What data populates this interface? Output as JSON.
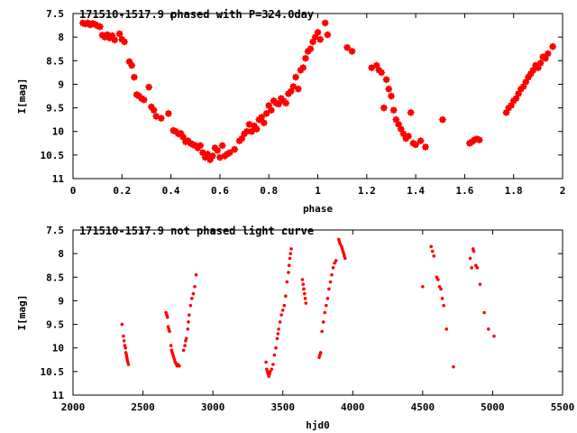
{
  "chart_data": [
    {
      "type": "scatter",
      "title": "171510-1517.9 phased with P=324.0day",
      "xlabel": "phase",
      "ylabel": "I[mag]",
      "xlim": [
        0,
        2
      ],
      "ylim": [
        7.5,
        11
      ],
      "y_inverted": true,
      "grid": false,
      "marker": "star",
      "color": "#ff0000",
      "x_ticks": [
        0,
        0.2,
        0.4,
        0.6,
        0.8,
        1,
        1.2,
        1.4,
        1.6,
        1.8,
        2
      ],
      "x_tick_labels": [
        "0",
        "0.2",
        "0.4",
        "0.6",
        "0.8",
        "1",
        "1.2",
        "1.4",
        "1.6",
        "1.8",
        "2"
      ],
      "y_ticks": [
        7.5,
        8,
        8.5,
        9,
        9.5,
        10,
        10.5,
        11
      ],
      "y_tick_labels": [
        "7.5",
        "8",
        "8.5",
        "9",
        "9.5",
        "10",
        "10.5",
        "11"
      ],
      "series": [
        {
          "points": [
            [
              0.04,
              7.7
            ],
            [
              0.05,
              7.72
            ],
            [
              0.06,
              7.7
            ],
            [
              0.07,
              7.74
            ],
            [
              0.08,
              7.71
            ],
            [
              0.09,
              7.73
            ],
            [
              0.1,
              7.76
            ],
            [
              0.11,
              7.78
            ],
            [
              0.12,
              7.96
            ],
            [
              0.13,
              8.0
            ],
            [
              0.14,
              7.95
            ],
            [
              0.15,
              8.02
            ],
            [
              0.16,
              7.97
            ],
            [
              0.17,
              8.06
            ],
            [
              0.19,
              7.93
            ],
            [
              0.2,
              8.05
            ],
            [
              0.21,
              8.1
            ],
            [
              0.23,
              8.52
            ],
            [
              0.24,
              8.6
            ],
            [
              0.25,
              8.85
            ],
            [
              0.26,
              9.22
            ],
            [
              0.27,
              9.25
            ],
            [
              0.28,
              9.3
            ],
            [
              0.29,
              9.33
            ],
            [
              0.31,
              9.06
            ],
            [
              0.32,
              9.48
            ],
            [
              0.33,
              9.55
            ],
            [
              0.34,
              9.68
            ],
            [
              0.36,
              9.72
            ],
            [
              0.39,
              9.62
            ],
            [
              0.41,
              9.98
            ],
            [
              0.42,
              10.0
            ],
            [
              0.43,
              10.05
            ],
            [
              0.44,
              10.04
            ],
            [
              0.45,
              10.12
            ],
            [
              0.46,
              10.22
            ],
            [
              0.47,
              10.2
            ],
            [
              0.48,
              10.25
            ],
            [
              0.49,
              10.28
            ],
            [
              0.5,
              10.3
            ],
            [
              0.51,
              10.35
            ],
            [
              0.52,
              10.3
            ],
            [
              0.53,
              10.45
            ],
            [
              0.54,
              10.55
            ],
            [
              0.55,
              10.48
            ],
            [
              0.56,
              10.6
            ],
            [
              0.57,
              10.52
            ],
            [
              0.58,
              10.35
            ],
            [
              0.59,
              10.4
            ],
            [
              0.6,
              10.55
            ],
            [
              0.61,
              10.3
            ],
            [
              0.62,
              10.52
            ],
            [
              0.63,
              10.48
            ],
            [
              0.64,
              10.45
            ],
            [
              0.66,
              10.38
            ],
            [
              0.68,
              10.2
            ],
            [
              0.69,
              10.15
            ],
            [
              0.7,
              10.05
            ],
            [
              0.71,
              10.0
            ],
            [
              0.72,
              9.85
            ],
            [
              0.73,
              10.0
            ],
            [
              0.74,
              9.88
            ],
            [
              0.75,
              9.95
            ],
            [
              0.76,
              9.75
            ],
            [
              0.77,
              9.7
            ],
            [
              0.78,
              9.82
            ],
            [
              0.79,
              9.62
            ],
            [
              0.8,
              9.45
            ],
            [
              0.81,
              9.55
            ],
            [
              0.82,
              9.35
            ],
            [
              0.83,
              9.4
            ],
            [
              0.84,
              9.42
            ],
            [
              0.85,
              9.3
            ],
            [
              0.86,
              9.35
            ],
            [
              0.87,
              9.4
            ],
            [
              0.88,
              9.2
            ],
            [
              0.89,
              9.15
            ],
            [
              0.9,
              9.05
            ],
            [
              0.91,
              8.85
            ],
            [
              0.92,
              9.1
            ],
            [
              0.93,
              8.7
            ],
            [
              0.94,
              8.65
            ],
            [
              0.95,
              8.45
            ],
            [
              0.96,
              8.3
            ],
            [
              0.97,
              8.25
            ],
            [
              0.98,
              8.1
            ],
            [
              0.99,
              8.0
            ],
            [
              1.0,
              7.9
            ],
            [
              1.01,
              8.05
            ],
            [
              1.03,
              7.7
            ],
            [
              1.04,
              7.95
            ],
            [
              1.12,
              8.22
            ],
            [
              1.14,
              8.3
            ],
            [
              1.22,
              8.65
            ],
            [
              1.24,
              8.6
            ],
            [
              1.25,
              8.7
            ],
            [
              1.26,
              8.75
            ],
            [
              1.27,
              9.5
            ],
            [
              1.28,
              8.9
            ],
            [
              1.29,
              9.1
            ],
            [
              1.3,
              9.25
            ],
            [
              1.31,
              9.55
            ],
            [
              1.32,
              9.75
            ],
            [
              1.33,
              9.85
            ],
            [
              1.34,
              9.95
            ],
            [
              1.35,
              10.05
            ],
            [
              1.36,
              10.15
            ],
            [
              1.37,
              10.1
            ],
            [
              1.38,
              9.6
            ],
            [
              1.39,
              10.25
            ],
            [
              1.4,
              10.28
            ],
            [
              1.42,
              10.2
            ],
            [
              1.44,
              10.33
            ],
            [
              1.51,
              9.75
            ],
            [
              1.62,
              10.25
            ],
            [
              1.63,
              10.22
            ],
            [
              1.64,
              10.18
            ],
            [
              1.65,
              10.16
            ],
            [
              1.66,
              10.18
            ],
            [
              1.77,
              9.6
            ],
            [
              1.78,
              9.5
            ],
            [
              1.79,
              9.45
            ],
            [
              1.8,
              9.35
            ],
            [
              1.81,
              9.3
            ],
            [
              1.82,
              9.2
            ],
            [
              1.83,
              9.1
            ],
            [
              1.84,
              9.05
            ],
            [
              1.85,
              8.95
            ],
            [
              1.86,
              8.85
            ],
            [
              1.87,
              8.78
            ],
            [
              1.88,
              8.7
            ],
            [
              1.89,
              8.6
            ],
            [
              1.9,
              8.65
            ],
            [
              1.91,
              8.55
            ],
            [
              1.92,
              8.42
            ],
            [
              1.93,
              8.45
            ],
            [
              1.94,
              8.35
            ],
            [
              1.96,
              8.2
            ]
          ]
        }
      ]
    },
    {
      "type": "scatter",
      "title": "171510-1517.9 not phased light curve",
      "xlabel": "hjd0",
      "ylabel": "I[mag]",
      "xlim": [
        2000,
        5500
      ],
      "ylim": [
        7.5,
        11
      ],
      "y_inverted": true,
      "grid": false,
      "marker": "dot",
      "color": "#ff0000",
      "x_ticks": [
        2000,
        2500,
        3000,
        3500,
        4000,
        4500,
        5000,
        5500
      ],
      "x_tick_labels": [
        "2000",
        "2500",
        "3000",
        "3500",
        "4000",
        "4500",
        "5000",
        "5500"
      ],
      "y_ticks": [
        7.5,
        8,
        8.5,
        9,
        9.5,
        10,
        10.5,
        11
      ],
      "y_tick_labels": [
        "7.5",
        "8",
        "8.5",
        "9",
        "9.5",
        "10",
        "10.5",
        "11"
      ],
      "series": [
        {
          "points": [
            [
              2350,
              9.5
            ],
            [
              2360,
              9.75
            ],
            [
              2365,
              9.85
            ],
            [
              2370,
              9.95
            ],
            [
              2375,
              10.0
            ],
            [
              2378,
              10.1
            ],
            [
              2382,
              10.15
            ],
            [
              2385,
              10.2
            ],
            [
              2388,
              10.25
            ],
            [
              2392,
              10.3
            ],
            [
              2396,
              10.35
            ],
            [
              2665,
              9.25
            ],
            [
              2670,
              9.3
            ],
            [
              2675,
              9.35
            ],
            [
              2680,
              9.55
            ],
            [
              2685,
              9.6
            ],
            [
              2690,
              9.65
            ],
            [
              2700,
              9.95
            ],
            [
              2705,
              10.05
            ],
            [
              2710,
              10.1
            ],
            [
              2715,
              10.15
            ],
            [
              2720,
              10.2
            ],
            [
              2725,
              10.25
            ],
            [
              2730,
              10.3
            ],
            [
              2735,
              10.32
            ],
            [
              2740,
              10.35
            ],
            [
              2745,
              10.38
            ],
            [
              2750,
              10.35
            ],
            [
              2760,
              10.38
            ],
            [
              2790,
              10.05
            ],
            [
              2800,
              9.95
            ],
            [
              2805,
              9.85
            ],
            [
              2810,
              9.8
            ],
            [
              2820,
              9.6
            ],
            [
              2825,
              9.45
            ],
            [
              2830,
              9.3
            ],
            [
              2840,
              9.1
            ],
            [
              2850,
              8.95
            ],
            [
              2860,
              8.85
            ],
            [
              2870,
              8.7
            ],
            [
              2880,
              8.45
            ],
            [
              3380,
              10.3
            ],
            [
              3385,
              10.45
            ],
            [
              3390,
              10.5
            ],
            [
              3395,
              10.55
            ],
            [
              3400,
              10.6
            ],
            [
              3405,
              10.55
            ],
            [
              3410,
              10.5
            ],
            [
              3420,
              10.45
            ],
            [
              3430,
              10.35
            ],
            [
              3440,
              10.15
            ],
            [
              3450,
              10.0
            ],
            [
              3460,
              9.8
            ],
            [
              3465,
              9.7
            ],
            [
              3470,
              9.6
            ],
            [
              3480,
              9.45
            ],
            [
              3490,
              9.3
            ],
            [
              3500,
              9.2
            ],
            [
              3510,
              9.1
            ],
            [
              3520,
              8.9
            ],
            [
              3530,
              8.6
            ],
            [
              3540,
              8.4
            ],
            [
              3545,
              8.25
            ],
            [
              3550,
              8.1
            ],
            [
              3555,
              8.0
            ],
            [
              3560,
              7.9
            ],
            [
              3640,
              8.55
            ],
            [
              3645,
              8.65
            ],
            [
              3650,
              8.75
            ],
            [
              3655,
              8.85
            ],
            [
              3660,
              8.95
            ],
            [
              3665,
              9.05
            ],
            [
              3760,
              10.2
            ],
            [
              3765,
              10.15
            ],
            [
              3770,
              10.1
            ],
            [
              3780,
              9.65
            ],
            [
              3790,
              9.45
            ],
            [
              3800,
              9.25
            ],
            [
              3810,
              9.1
            ],
            [
              3820,
              8.95
            ],
            [
              3830,
              8.75
            ],
            [
              3840,
              8.6
            ],
            [
              3850,
              8.45
            ],
            [
              3860,
              8.3
            ],
            [
              3870,
              8.2
            ],
            [
              3880,
              8.15
            ],
            [
              3900,
              7.7
            ],
            [
              3905,
              7.75
            ],
            [
              3910,
              7.8
            ],
            [
              3920,
              7.85
            ],
            [
              3925,
              7.9
            ],
            [
              3930,
              7.95
            ],
            [
              3935,
              8.0
            ],
            [
              3940,
              8.05
            ],
            [
              3945,
              8.1
            ],
            [
              4500,
              8.7
            ],
            [
              4560,
              7.85
            ],
            [
              4570,
              7.95
            ],
            [
              4580,
              8.05
            ],
            [
              4600,
              8.5
            ],
            [
              4610,
              8.55
            ],
            [
              4620,
              8.7
            ],
            [
              4630,
              8.75
            ],
            [
              4640,
              8.95
            ],
            [
              4650,
              9.1
            ],
            [
              4670,
              9.6
            ],
            [
              4720,
              10.4
            ],
            [
              4840,
              8.1
            ],
            [
              4850,
              8.3
            ],
            [
              4860,
              7.9
            ],
            [
              4865,
              7.95
            ],
            [
              4880,
              8.25
            ],
            [
              4890,
              8.3
            ],
            [
              4910,
              8.65
            ],
            [
              4940,
              9.25
            ],
            [
              4970,
              9.6
            ],
            [
              5010,
              9.75
            ]
          ]
        }
      ]
    }
  ]
}
